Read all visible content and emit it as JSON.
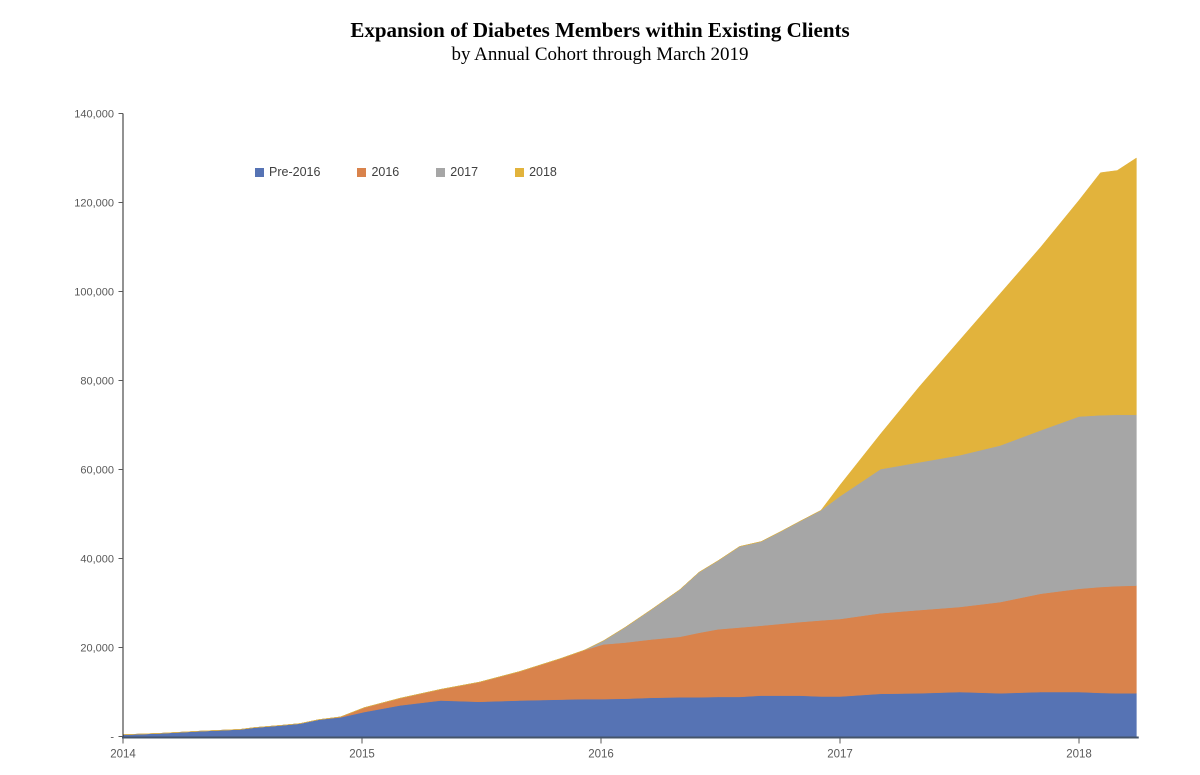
{
  "title": "Expansion of Diabetes Members within Existing Clients",
  "subtitle": "by Annual Cohort through March 2019",
  "chart_data": {
    "type": "area",
    "stacked": true,
    "title": "Expansion of Diabetes Members within Existing Clients",
    "subtitle": "by Annual Cohort through March 2019",
    "legend_position": "top-left-inside",
    "grid": false,
    "x_range": [
      2014,
      2018.25
    ],
    "y_range": [
      0,
      140000
    ],
    "x_axis": {
      "tick_values": [
        2014,
        2015,
        2016,
        2017,
        2018
      ],
      "tick_labels": [
        "2014",
        "2015",
        "2016",
        "2017",
        "2018"
      ]
    },
    "y_axis": {
      "tick_values": [
        0,
        20000,
        40000,
        60000,
        80000,
        100000,
        120000,
        140000
      ],
      "tick_labels": [
        "-",
        "20,000",
        "40,000",
        "60,000",
        "80,000",
        "100,000",
        "120,000",
        "140,000"
      ]
    },
    "x": [
      2014.0,
      2014.15,
      2014.32,
      2014.49,
      2014.55,
      2014.66,
      2014.74,
      2014.82,
      2014.91,
      2015.01,
      2015.16,
      2015.33,
      2015.49,
      2015.66,
      2015.83,
      2015.93,
      2016.01,
      2016.1,
      2016.21,
      2016.33,
      2016.41,
      2016.49,
      2016.58,
      2016.67,
      2016.75,
      2016.83,
      2016.92,
      2017.0,
      2017.17,
      2017.33,
      2017.5,
      2017.67,
      2017.84,
      2018.0,
      2018.09,
      2018.16,
      2018.24
    ],
    "series": [
      {
        "name": "Pre-2016",
        "color": "#5673B4",
        "values": [
          400,
          700,
          1200,
          1600,
          2000,
          2500,
          2900,
          3800,
          4300,
          5500,
          7000,
          8100,
          7800,
          8100,
          8300,
          8400,
          8400,
          8500,
          8700,
          8800,
          8800,
          8900,
          8900,
          9200,
          9200,
          9200,
          9000,
          9000,
          9600,
          9700,
          10000,
          9700,
          10000,
          10000,
          9800,
          9700,
          9700
        ]
      },
      {
        "name": "2016",
        "color": "#D9834C",
        "values": [
          0,
          0,
          0,
          0,
          0,
          0,
          0,
          0,
          100,
          1000,
          1600,
          2500,
          4400,
          6500,
          9200,
          11000,
          12300,
          12600,
          13100,
          13600,
          14500,
          15200,
          15600,
          15700,
          16100,
          16500,
          17100,
          17400,
          18100,
          18700,
          19100,
          20500,
          22100,
          23200,
          23800,
          24100,
          24200
        ]
      },
      {
        "name": "2017",
        "color": "#A6A6A6",
        "values": [
          0,
          0,
          0,
          0,
          0,
          0,
          0,
          0,
          0,
          0,
          0,
          0,
          0,
          0,
          0,
          0,
          800,
          3400,
          6700,
          10600,
          13600,
          15400,
          18200,
          18900,
          20700,
          22600,
          24700,
          27600,
          32400,
          33200,
          34100,
          35200,
          36700,
          38700,
          38600,
          38500,
          38400
        ]
      },
      {
        "name": "2018",
        "color": "#E2B33C",
        "values": [
          0,
          0,
          0,
          0,
          0,
          0,
          0,
          0,
          0,
          0,
          0,
          0,
          0,
          0,
          0,
          0,
          0,
          0,
          0,
          0,
          0,
          0,
          0,
          0,
          0,
          0,
          0,
          2500,
          7900,
          16900,
          25800,
          34100,
          41200,
          48600,
          54500,
          54900,
          57700
        ]
      }
    ]
  },
  "axis_style": {
    "x_axis_line_color": "#44546A",
    "y_axis_line_color": "#262626",
    "tick_color": "#595959",
    "label_color": "#595959"
  }
}
